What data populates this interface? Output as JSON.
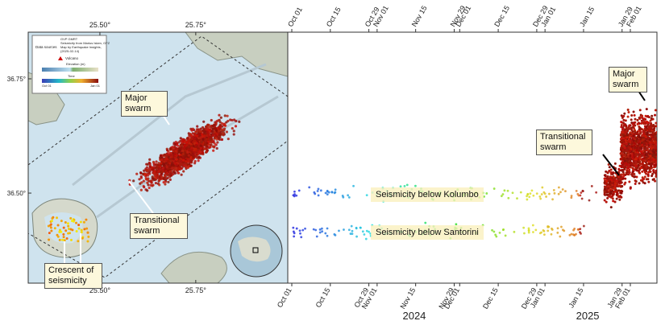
{
  "map": {
    "xticks": [
      {
        "value": 25.5,
        "label": "25.50°"
      },
      {
        "value": 25.75,
        "label": "25.75°"
      }
    ],
    "xlim": [
      25.313,
      25.99
    ],
    "yticks": [
      {
        "value": 36.75,
        "label": "36.75°"
      },
      {
        "value": 36.5,
        "label": "36.50°"
      }
    ],
    "ylim": [
      36.303,
      36.852
    ],
    "legend": {
      "title": "Data sources",
      "lines": [
        "GVP GMRT",
        "Seismicity from Marius Isken, GFZ",
        "Map by Earthquake Insights,",
        "(2025-02-14)"
      ],
      "volcano": "Volcano",
      "elevation": "Elevation (m)",
      "time": "Time",
      "time_start": "Oct 01",
      "time_end": "Jan 01"
    },
    "annotations": [
      "Major swarm",
      "Transitional swarm",
      "Crescent of seismicity"
    ]
  },
  "timeline": {
    "ticks": [
      "Oct 01",
      "Oct 15",
      "Oct 29",
      "Nov 01",
      "Nov 15",
      "Nov 29",
      "Dec 01",
      "Dec 15",
      "Dec 29",
      "Jan 01",
      "Jan 15",
      "Jan 29",
      "Feb 01"
    ],
    "years": [
      "2024",
      "2025"
    ],
    "annotations": [
      "Seismicity below Kolumbo",
      "Seismicity below Santorini",
      "Transitional swarm",
      "Major swarm"
    ]
  }
}
